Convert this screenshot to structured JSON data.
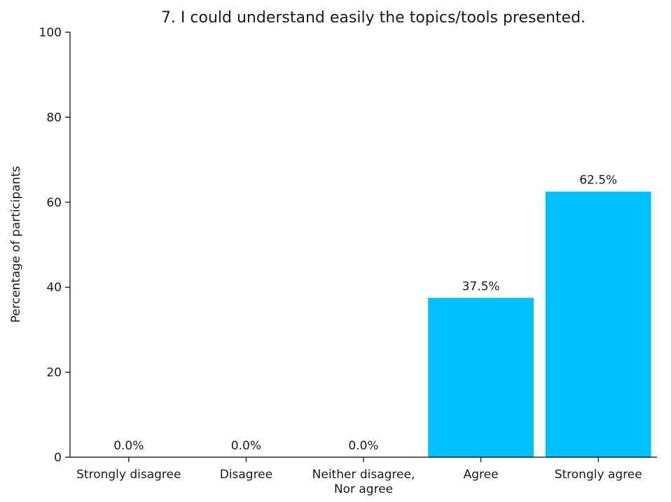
{
  "chart_data": {
    "type": "bar",
    "title": "7. I could understand easily the topics/tools presented.",
    "xlabel": "",
    "ylabel": "Percentage of participants",
    "categories": [
      [
        "Strongly disagree"
      ],
      [
        "Disagree"
      ],
      [
        "Neither disagree,",
        "Nor agree"
      ],
      [
        "Agree"
      ],
      [
        "Strongly agree"
      ]
    ],
    "values": [
      0.0,
      0.0,
      0.0,
      37.5,
      62.5
    ],
    "data_labels": [
      "0.0%",
      "0.0%",
      "0.0%",
      "37.5%",
      "62.5%"
    ],
    "ylim": [
      0,
      100
    ],
    "yticks": [
      0,
      20,
      40,
      60,
      80,
      100
    ],
    "bar_color": "#00bfff",
    "grid": false,
    "legend": "none"
  }
}
